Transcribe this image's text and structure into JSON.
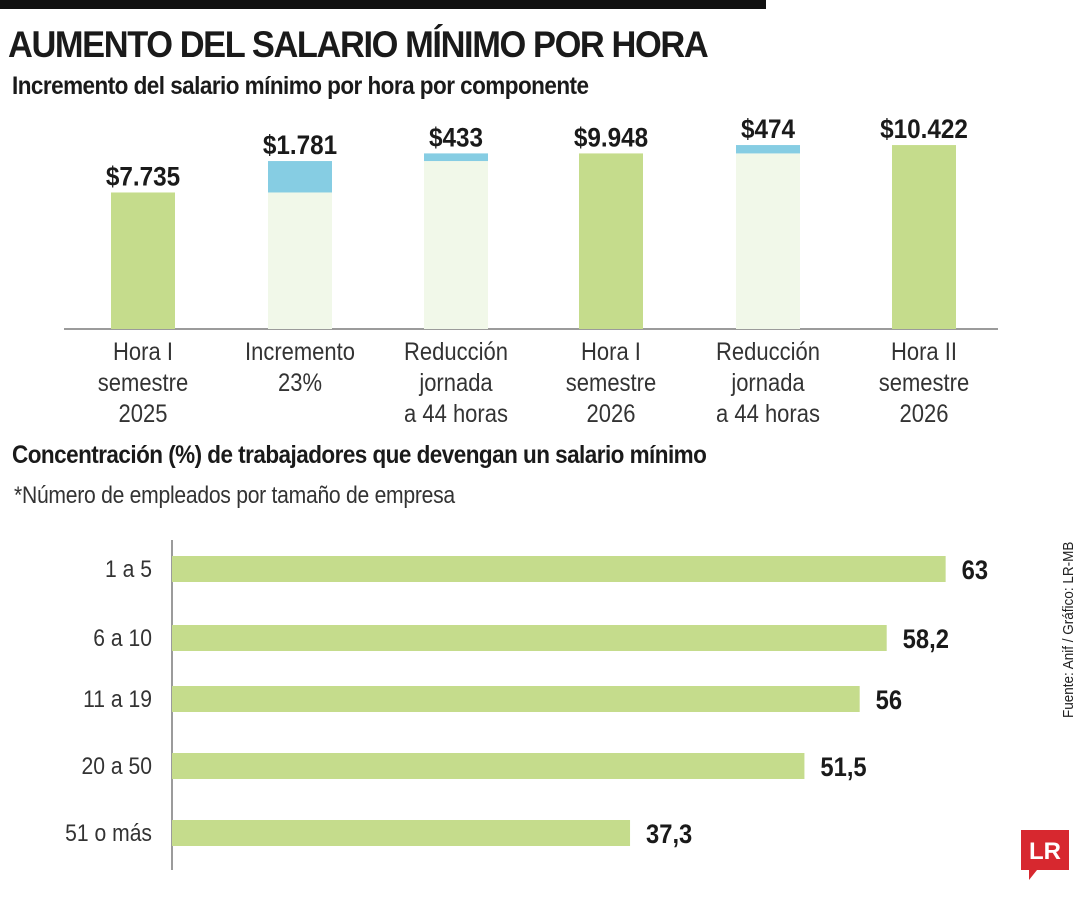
{
  "header": {
    "title": "AUMENTO DEL SALARIO MÍNIMO POR HORA"
  },
  "chart_data": [
    {
      "type": "bar",
      "subtype": "waterfall",
      "title": "Incremento del salario mínimo por hora por componente",
      "categories": [
        [
          "Hora I",
          "semestre",
          "2025"
        ],
        [
          "Incremento",
          "23%"
        ],
        [
          "Reducción",
          "jornada",
          "a 44 horas"
        ],
        [
          "Hora I",
          "semestre",
          "2026"
        ],
        [
          "Reducción",
          "jornada",
          "a 44 horas"
        ],
        [
          "Hora II",
          "semestre",
          "2026"
        ]
      ],
      "values": [
        7735,
        1781,
        433,
        9948,
        474,
        10422
      ],
      "value_labels": [
        "$7.735",
        "$1.781",
        "$433",
        "$9.948",
        "$474",
        "$10.422"
      ],
      "bar_kind": [
        "total",
        "increment",
        "increment",
        "total",
        "increment",
        "total"
      ],
      "colors": {
        "total": "#c5dc8c",
        "increment": "#86cde3",
        "base": "#f1f8e9",
        "axis": "#7a7a7a"
      }
    },
    {
      "type": "bar",
      "orientation": "horizontal",
      "title": "Concentración (%) de trabajadores que devengan un salario mínimo",
      "note": "*Número de empleados por tamaño de empresa",
      "categories": [
        "1 a 5",
        "6 a 10",
        "11 a 19",
        "20 a 50",
        "51 o más"
      ],
      "values": [
        63,
        58.2,
        56,
        51.5,
        37.3
      ],
      "value_labels": [
        "63",
        "58,2",
        "56",
        "51,5",
        "37,3"
      ],
      "color": "#c5dc8c"
    }
  ],
  "source": "Fuente: Anif / Gráfico: LR-MB",
  "logo": {
    "text": "LR",
    "color": "#d7282f"
  }
}
